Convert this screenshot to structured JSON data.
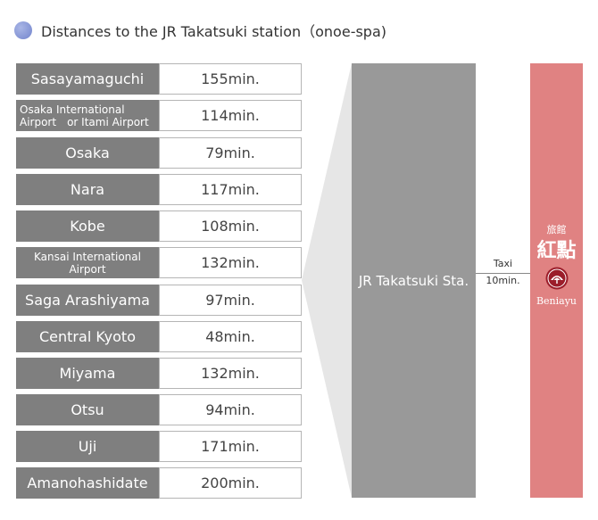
{
  "title": "Distances to the JR Takatsuki station（onoe-spa)",
  "destinations": [
    {
      "name": "Sasayamaguchi",
      "time": "155min."
    },
    {
      "name": "Osaka International Airport　or  Itami Airport",
      "time": "114min."
    },
    {
      "name": "Osaka",
      "time": "79min."
    },
    {
      "name": "Nara",
      "time": "117min."
    },
    {
      "name": "Kobe",
      "time": "108min."
    },
    {
      "name": "Kansai International Airport",
      "time": "132min."
    },
    {
      "name": "Saga Arashiyama",
      "time": "97min."
    },
    {
      "name": "Central Kyoto",
      "time": "48min."
    },
    {
      "name": "Miyama",
      "time": "132min."
    },
    {
      "name": "Otsu",
      "time": "94min."
    },
    {
      "name": "Uji",
      "time": "171min."
    },
    {
      "name": "Amanohashidate",
      "time": "200min."
    }
  ],
  "station": "JR Takatsuki Sta.",
  "transfer": {
    "mode": "Taxi",
    "time": "10min."
  },
  "hotel": {
    "kind": "旅館",
    "name": "紅點",
    "roman": "Beniayu",
    "logo_icon": "fan-crest-icon"
  },
  "colors": {
    "dest_bg": "#7f7f7f",
    "station_bg": "#999999",
    "hotel_bg": "#e08282",
    "funnel": "#e6e6e6",
    "dot": "#7284cc"
  }
}
